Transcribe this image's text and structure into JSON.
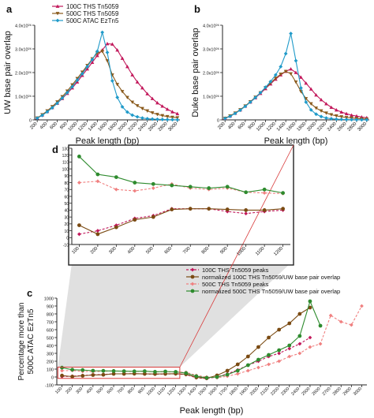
{
  "colors": {
    "ths100": "#c2185b",
    "ths500": "#8a5a1c",
    "atac": "#1f9ac9",
    "norm100": "#7a4a12",
    "ths500peaks": "#f08080",
    "norm500": "#2e8b2e",
    "zoom_shade": "#d6d6d6",
    "zoom_box": "#d83a3a"
  },
  "chart_data": [
    {
      "panel": "a",
      "type": "line",
      "ylabel": "UW base pair overlap",
      "xlabel": "Peak length (bp)",
      "ylim": [
        0,
        4000000
      ],
      "yticks": [
        "0",
        "1.0x10⁰⁶",
        "2.0x10⁰⁶",
        "3.0x10⁰⁶",
        "4.0x10⁰⁶"
      ],
      "x": [
        200,
        300,
        400,
        500,
        600,
        700,
        800,
        900,
        1000,
        1100,
        1200,
        1300,
        1400,
        1500,
        1600,
        1700,
        1800,
        1900,
        2000,
        2100,
        2200,
        2300,
        2400,
        2500,
        2600,
        2700,
        2800,
        2900,
        3000
      ],
      "xticks": [
        "200",
        "400",
        "600",
        "800",
        "1000",
        "1200",
        "1400",
        "1600",
        "1800",
        "2000",
        "2200",
        "2400",
        "2600",
        "2800",
        "3000"
      ],
      "series": [
        {
          "name": "100C THS Tn5059",
          "color": "ths100",
          "marker": "triangle-up",
          "values": [
            80000,
            200000,
            350000,
            520000,
            700000,
            900000,
            1120000,
            1350000,
            1600000,
            1880000,
            2150000,
            2430000,
            2720000,
            2950000,
            3220000,
            3200000,
            2950000,
            2600000,
            2250000,
            1900000,
            1600000,
            1350000,
            1100000,
            900000,
            720000,
            580000,
            450000,
            340000,
            260000
          ]
        },
        {
          "name": "500C THS Tn5059",
          "color": "ths500",
          "marker": "triangle-down",
          "values": [
            80000,
            220000,
            380000,
            560000,
            760000,
            980000,
            1220000,
            1480000,
            1750000,
            2020000,
            2300000,
            2580000,
            2820000,
            2900000,
            2500000,
            1900000,
            1500000,
            1200000,
            950000,
            750000,
            600000,
            480000,
            380000,
            300000,
            230000,
            180000,
            140000,
            110000,
            90000
          ]
        },
        {
          "name": "500C ATAC EzTn5",
          "color": "atac",
          "marker": "diamond",
          "values": [
            70000,
            190000,
            340000,
            510000,
            700000,
            920000,
            1150000,
            1400000,
            1680000,
            1950000,
            2250000,
            2550000,
            2900000,
            3700000,
            2850000,
            1650000,
            950000,
            550000,
            330000,
            200000,
            130000,
            80000,
            50000,
            35000,
            25000,
            18000,
            12000,
            8000,
            5000
          ]
        }
      ]
    },
    {
      "panel": "b",
      "type": "line",
      "ylabel": "Duke base pair overlap",
      "xlabel": "Peak length (bp)",
      "ylim": [
        0,
        4000000
      ],
      "yticks": [
        "0",
        "1.0x10⁰⁶",
        "2.0x10⁰⁶",
        "3.0x10⁰⁶",
        "4.0x10⁰⁶"
      ],
      "x": [
        200,
        300,
        400,
        500,
        600,
        700,
        800,
        900,
        1000,
        1100,
        1200,
        1300,
        1400,
        1500,
        1600,
        1700,
        1800,
        1900,
        2000,
        2100,
        2200,
        2300,
        2400,
        2500,
        2600,
        2700,
        2800,
        2900,
        3000
      ],
      "xticks": [
        "200",
        "400",
        "600",
        "800",
        "1000",
        "1200",
        "1400",
        "1600",
        "1800",
        "2000",
        "2200",
        "2400",
        "2600",
        "2800",
        "3000"
      ],
      "series": [
        {
          "name": "100C THS Tn5059",
          "color": "ths100",
          "marker": "triangle-up",
          "values": [
            70000,
            160000,
            280000,
            420000,
            580000,
            750000,
            930000,
            1120000,
            1320000,
            1520000,
            1720000,
            1900000,
            2050000,
            2150000,
            2000000,
            1800000,
            1550000,
            1300000,
            1050000,
            850000,
            680000,
            530000,
            420000,
            330000,
            260000,
            200000,
            160000,
            120000,
            90000
          ]
        },
        {
          "name": "500C THS Tn5059",
          "color": "ths500",
          "marker": "triangle-down",
          "values": [
            70000,
            170000,
            290000,
            430000,
            590000,
            770000,
            960000,
            1150000,
            1360000,
            1560000,
            1760000,
            1930000,
            2050000,
            1950000,
            1600000,
            1200000,
            900000,
            680000,
            500000,
            380000,
            290000,
            220000,
            170000,
            130000,
            100000,
            80000,
            60000,
            45000,
            35000
          ]
        },
        {
          "name": "500C ATAC EzTn5",
          "color": "atac",
          "marker": "diamond",
          "values": [
            60000,
            150000,
            270000,
            410000,
            570000,
            750000,
            940000,
            1150000,
            1380000,
            1620000,
            1900000,
            2250000,
            2800000,
            3650000,
            2500000,
            1350000,
            750000,
            420000,
            240000,
            140000,
            80000,
            50000,
            30000,
            20000,
            14000,
            10000,
            7000,
            5000,
            3000
          ]
        }
      ]
    },
    {
      "panel": "c",
      "type": "line",
      "ylabel": "Percentage more than 500C ATAC EzTn5",
      "xlabel": "Peak length (bp)",
      "ylim": [
        -100,
        1000
      ],
      "yticks": [
        "-100",
        "0",
        "100",
        "200",
        "300",
        "400",
        "500",
        "600",
        "700",
        "800",
        "900",
        "1000"
      ],
      "x": [
        100,
        200,
        300,
        400,
        500,
        600,
        700,
        800,
        900,
        1000,
        1100,
        1200,
        1300,
        1400,
        1500,
        1600,
        1700,
        1800,
        1900,
        2000,
        2100,
        2200,
        2300,
        2400,
        2500,
        2600,
        2700,
        2800,
        2900,
        3000
      ],
      "xticks": [
        "100",
        "200",
        "300",
        "400",
        "500",
        "600",
        "700",
        "800",
        "900",
        "1000",
        "1100",
        "1200",
        "1300",
        "1400",
        "1500",
        "1600",
        "1700",
        "1800",
        "1900",
        "2000",
        "2100",
        "2200",
        "2300",
        "2400",
        "2500",
        "2600",
        "2700",
        "2800",
        "2900",
        "3000"
      ],
      "legend": [
        "100C THS Tn5059 peaks",
        "normalized 100C THS Tn5059/UW base pair overlap",
        "500C THS Tn5059 peaks",
        "normalized 500C THS Tn5059/UW base pair overlap"
      ],
      "series": [
        {
          "name": "100C THS Tn5059 peaks",
          "color": "ths100",
          "dash": true,
          "values": [
            5,
            10,
            18,
            28,
            32,
            40,
            40,
            42,
            38,
            35,
            38,
            40,
            30,
            -10,
            -20,
            0,
            40,
            90,
            150,
            200,
            260,
            300,
            360,
            420,
            500,
            null,
            null,
            null,
            null,
            null
          ]
        },
        {
          "name": "normalized 100C THS Tn5059/UW base pair overlap",
          "color": "norm100",
          "dash": false,
          "values": [
            18,
            5,
            15,
            25,
            28,
            40,
            40,
            42,
            40,
            38,
            40,
            42,
            35,
            -5,
            -15,
            20,
            80,
            160,
            260,
            380,
            500,
            600,
            680,
            800,
            880,
            null,
            null,
            null,
            null,
            null
          ]
        },
        {
          "name": "500C THS Tn5059 peaks",
          "color": "ths500peaks",
          "dash": true,
          "values": [
            80,
            82,
            70,
            68,
            72,
            78,
            72,
            70,
            72,
            66,
            65,
            64,
            60,
            20,
            0,
            -10,
            10,
            40,
            80,
            120,
            160,
            200,
            260,
            300,
            380,
            420,
            780,
            700,
            660,
            900
          ]
        },
        {
          "name": "normalized 500C THS Tn5059/UW base pair overlap",
          "color": "norm500",
          "dash": false,
          "values": [
            118,
            92,
            88,
            80,
            78,
            76,
            74,
            72,
            74,
            66,
            70,
            65,
            50,
            10,
            -10,
            0,
            30,
            80,
            150,
            220,
            280,
            340,
            400,
            520,
            960,
            650,
            null,
            null,
            null,
            null
          ]
        }
      ]
    },
    {
      "panel": "d",
      "type": "line",
      "role": "zoom of panel c, 100-1200 bp",
      "ylim": [
        -10,
        130
      ],
      "yticks": [
        "-10",
        "0",
        "10",
        "20",
        "30",
        "40",
        "50",
        "60",
        "70",
        "80",
        "90",
        "100",
        "110",
        "120",
        "130"
      ],
      "x": [
        100,
        200,
        300,
        400,
        500,
        600,
        700,
        800,
        900,
        1000,
        1100,
        1200
      ],
      "xticks": [
        "100",
        "200",
        "300",
        "400",
        "500",
        "600",
        "700",
        "800",
        "900",
        "1000",
        "1100",
        "1200"
      ],
      "series": [
        {
          "name": "100C THS Tn5059 peaks",
          "color": "ths100",
          "dash": true,
          "values": [
            5,
            10,
            18,
            28,
            32,
            42,
            42,
            42,
            38,
            35,
            38,
            40
          ]
        },
        {
          "name": "normalized 100C THS Tn5059/UW base pair overlap",
          "color": "norm100",
          "dash": false,
          "values": [
            18,
            5,
            15,
            26,
            30,
            41,
            42,
            42,
            41,
            40,
            40,
            42
          ]
        },
        {
          "name": "500C THS Tn5059 peaks",
          "color": "ths500peaks",
          "dash": true,
          "values": [
            80,
            82,
            70,
            68,
            72,
            78,
            72,
            70,
            72,
            66,
            65,
            64
          ]
        },
        {
          "name": "normalized 500C THS Tn5059/UW base pair overlap",
          "color": "norm500",
          "dash": false,
          "values": [
            118,
            92,
            88,
            80,
            78,
            76,
            74,
            72,
            74,
            66,
            70,
            65
          ]
        }
      ]
    }
  ]
}
